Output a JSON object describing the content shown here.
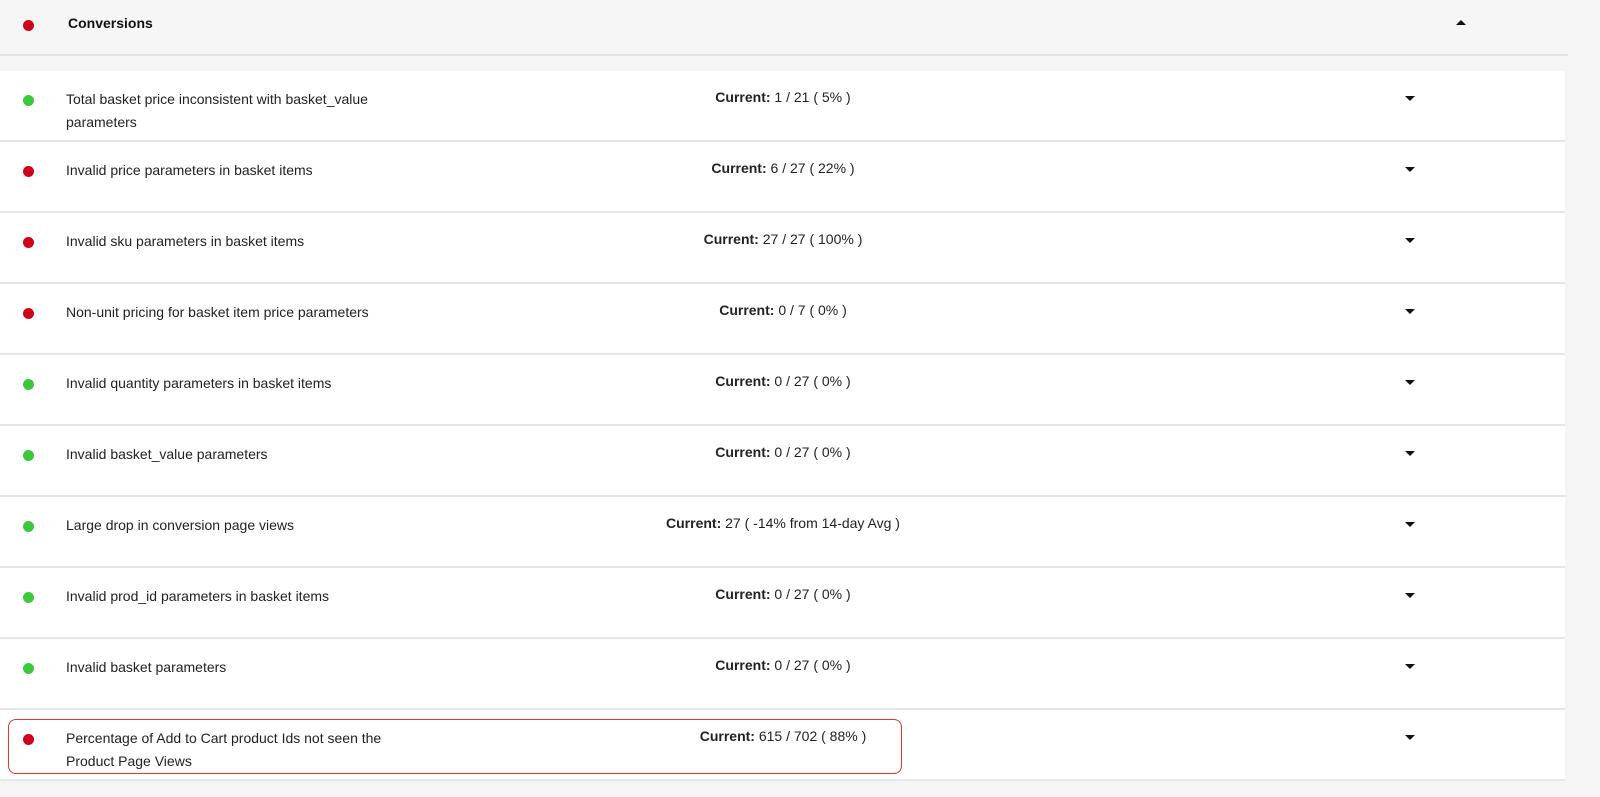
{
  "colors": {
    "red": "#d0021b",
    "green": "#3cc83c",
    "highlight": "#e8342a"
  },
  "header": {
    "title": "Conversions",
    "status": "red",
    "toggle_icon": "caret-up-icon"
  },
  "current_label": "Current:",
  "rows": [
    {
      "label": "Total basket price inconsistent with basket_value parameters",
      "value": "1 / 21 ( 5% )",
      "status": "green"
    },
    {
      "label": "Invalid price parameters in basket items",
      "value": "6 / 27 ( 22% )",
      "status": "red"
    },
    {
      "label": "Invalid sku parameters in basket items",
      "value": "27 / 27 ( 100% )",
      "status": "red"
    },
    {
      "label": "Non-unit pricing for basket item price parameters",
      "value": "0 / 7 ( 0% )",
      "status": "red"
    },
    {
      "label": "Invalid quantity parameters in basket items",
      "value": "0 / 27 ( 0% )",
      "status": "green"
    },
    {
      "label": "Invalid basket_value parameters",
      "value": "0 / 27 ( 0% )",
      "status": "green"
    },
    {
      "label": "Large drop in conversion page views",
      "value": "27 ( -14% from 14-day Avg )",
      "status": "green"
    },
    {
      "label": "Invalid prod_id parameters in basket items",
      "value": "0 / 27 ( 0% )",
      "status": "green"
    },
    {
      "label": "Invalid basket parameters",
      "value": "0 / 27 ( 0% )",
      "status": "green"
    },
    {
      "label": "Percentage of Add to Cart product Ids not seen the Product Page Views",
      "value": "615 / 702 ( 88% )",
      "status": "red",
      "highlighted": true
    }
  ]
}
